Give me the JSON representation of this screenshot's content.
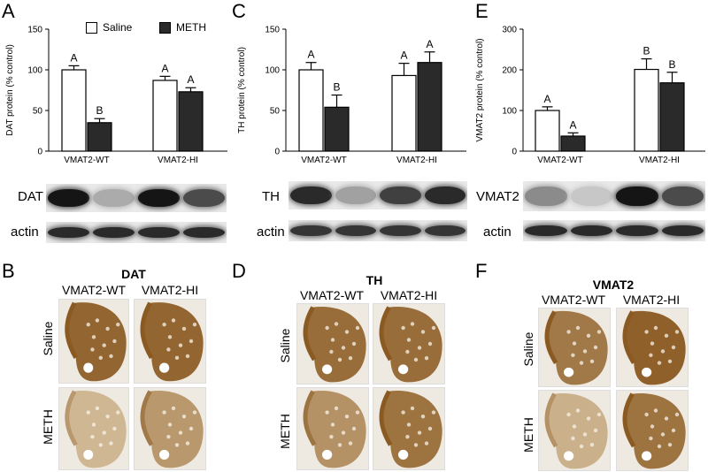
{
  "panel_letters": {
    "a": "A",
    "b": "B",
    "c": "C",
    "d": "D",
    "e": "E",
    "f": "F"
  },
  "legend": {
    "saline": "Saline",
    "meth": "METH"
  },
  "colors": {
    "saline": "#ffffff",
    "meth": "#2a2a2a",
    "stain_dark": "#8a5a22",
    "stain_light": "#e7d6b8"
  },
  "chart_data": [
    {
      "type": "bar",
      "ylabel": "DAT protein (% control)",
      "ylim": [
        0,
        150
      ],
      "yticks": [
        "0",
        "50",
        "100",
        "150"
      ],
      "categories": [
        "VMAT2-WT",
        "VMAT2-HI"
      ],
      "series": [
        {
          "name": "Saline",
          "values": [
            100,
            87
          ],
          "errors": [
            5,
            5
          ],
          "letters": [
            "A",
            "A"
          ]
        },
        {
          "name": "METH",
          "values": [
            35,
            73
          ],
          "errors": [
            5,
            5
          ],
          "letters": [
            "B",
            "A"
          ]
        }
      ],
      "legend_placement": "top"
    },
    {
      "type": "bar",
      "ylabel": "TH protein (% control)",
      "ylim": [
        0,
        150
      ],
      "yticks": [
        "0",
        "50",
        "100",
        "150"
      ],
      "categories": [
        "VMAT2-WT",
        "VMAT2-HI"
      ],
      "series": [
        {
          "name": "Saline",
          "values": [
            100,
            93
          ],
          "errors": [
            9,
            15
          ],
          "letters": [
            "A",
            "A"
          ]
        },
        {
          "name": "METH",
          "values": [
            54,
            109
          ],
          "errors": [
            15,
            13
          ],
          "letters": [
            "B",
            "A"
          ]
        }
      ]
    },
    {
      "type": "bar",
      "ylabel": "VMAT2 protein (% control)",
      "ylim": [
        0,
        300
      ],
      "yticks": [
        "0",
        "100",
        "200",
        "300"
      ],
      "categories": [
        "VMAT2-WT",
        "VMAT2-HI"
      ],
      "series": [
        {
          "name": "Saline",
          "values": [
            100,
            201
          ],
          "errors": [
            9,
            26
          ],
          "letters": [
            "A",
            "B"
          ]
        },
        {
          "name": "METH",
          "values": [
            37,
            168
          ],
          "errors": [
            8,
            26
          ],
          "letters": [
            "A",
            "B"
          ]
        }
      ]
    }
  ],
  "blots": [
    {
      "protein_label": "DAT",
      "actin_label": "actin",
      "protein_intensity": [
        0.95,
        0.25,
        0.95,
        0.7
      ],
      "actin_intensity": [
        0.85,
        0.85,
        0.85,
        0.85
      ]
    },
    {
      "protein_label": "TH",
      "actin_label": "actin",
      "protein_intensity": [
        0.85,
        0.3,
        0.75,
        0.85
      ],
      "actin_intensity": [
        0.8,
        0.8,
        0.8,
        0.8
      ]
    },
    {
      "protein_label": "VMAT2",
      "actin_label": "actin",
      "protein_intensity": [
        0.4,
        0.12,
        0.95,
        0.7
      ],
      "actin_intensity": [
        0.85,
        0.85,
        0.85,
        0.85
      ]
    }
  ],
  "sections": [
    {
      "title": "DAT",
      "cols": [
        "VMAT2-WT",
        "VMAT2-HI"
      ],
      "rows": [
        "Saline",
        "METH"
      ],
      "staining": [
        [
          0.9,
          0.9
        ],
        [
          0.25,
          0.5
        ]
      ]
    },
    {
      "title": "TH",
      "cols": [
        "VMAT2-WT",
        "VMAT2-HI"
      ],
      "rows": [
        "Saline",
        "METH"
      ],
      "staining": [
        [
          0.85,
          0.85
        ],
        [
          0.55,
          0.8
        ]
      ]
    },
    {
      "title": "VMAT2",
      "cols": [
        "VMAT2-WT",
        "VMAT2-HI"
      ],
      "rows": [
        "Saline",
        "METH"
      ],
      "staining": [
        [
          0.75,
          0.95
        ],
        [
          0.3,
          0.8
        ]
      ]
    }
  ]
}
